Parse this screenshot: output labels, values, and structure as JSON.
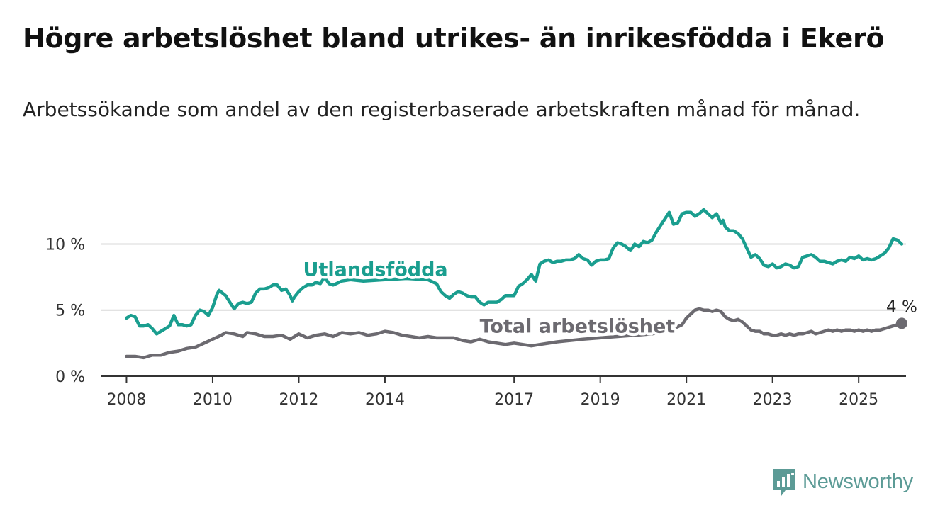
{
  "title": "Högre arbetslöshet bland utrikes- än inrikesfödda i Ekerö",
  "subtitle": "Arbetssökande som andel av den registerbaserade arbetskraften månad för månad.",
  "brand": {
    "name": "Newsworthy",
    "color": "#5c9b96"
  },
  "colors": {
    "foreign": "#1a9e8f",
    "total": "#6c6a70",
    "grid": "#d9d9d9",
    "axis": "#333333"
  },
  "chart_data": {
    "type": "line",
    "x_unit": "year",
    "xlim": [
      2007.4,
      2026.1
    ],
    "ylim": [
      0,
      12.6
    ],
    "yticks": [
      {
        "value": 0,
        "label": "0 %"
      },
      {
        "value": 5,
        "label": "5 %"
      },
      {
        "value": 10,
        "label": "10 %"
      }
    ],
    "xticks": [
      {
        "value": 2008,
        "label": "2008"
      },
      {
        "value": 2010,
        "label": "2010"
      },
      {
        "value": 2012,
        "label": "2012"
      },
      {
        "value": 2014,
        "label": "2014"
      },
      {
        "value": 2017,
        "label": "2017"
      },
      {
        "value": 2019,
        "label": "2019"
      },
      {
        "value": 2021,
        "label": "2021"
      },
      {
        "value": 2023,
        "label": "2023"
      },
      {
        "value": 2025,
        "label": "2025"
      }
    ],
    "series": [
      {
        "name": "Utlandsfödda",
        "color": "#1a9e8f",
        "label_at": [
          2012.1,
          7.6
        ],
        "points": [
          [
            2008.0,
            4.4
          ],
          [
            2008.1,
            4.6
          ],
          [
            2008.2,
            4.5
          ],
          [
            2008.3,
            3.8
          ],
          [
            2008.4,
            3.8
          ],
          [
            2008.5,
            3.9
          ],
          [
            2008.6,
            3.6
          ],
          [
            2008.7,
            3.2
          ],
          [
            2008.8,
            3.4
          ],
          [
            2008.9,
            3.6
          ],
          [
            2009.0,
            3.8
          ],
          [
            2009.1,
            4.6
          ],
          [
            2009.2,
            3.9
          ],
          [
            2009.3,
            3.9
          ],
          [
            2009.4,
            3.8
          ],
          [
            2009.5,
            3.9
          ],
          [
            2009.6,
            4.6
          ],
          [
            2009.7,
            5.0
          ],
          [
            2009.8,
            4.9
          ],
          [
            2009.9,
            4.6
          ],
          [
            2010.0,
            5.2
          ],
          [
            2010.1,
            6.2
          ],
          [
            2010.15,
            6.5
          ],
          [
            2010.3,
            6.1
          ],
          [
            2010.4,
            5.6
          ],
          [
            2010.5,
            5.1
          ],
          [
            2010.6,
            5.5
          ],
          [
            2010.7,
            5.6
          ],
          [
            2010.8,
            5.5
          ],
          [
            2010.9,
            5.6
          ],
          [
            2011.0,
            6.3
          ],
          [
            2011.1,
            6.6
          ],
          [
            2011.2,
            6.6
          ],
          [
            2011.3,
            6.7
          ],
          [
            2011.4,
            6.9
          ],
          [
            2011.5,
            6.9
          ],
          [
            2011.6,
            6.5
          ],
          [
            2011.7,
            6.6
          ],
          [
            2011.8,
            6.1
          ],
          [
            2011.85,
            5.7
          ],
          [
            2011.9,
            6.0
          ],
          [
            2012.0,
            6.4
          ],
          [
            2012.1,
            6.7
          ],
          [
            2012.2,
            6.9
          ],
          [
            2012.3,
            6.9
          ],
          [
            2012.4,
            7.1
          ],
          [
            2012.5,
            7.0
          ],
          [
            2012.6,
            7.5
          ],
          [
            2012.7,
            7.0
          ],
          [
            2012.8,
            6.9
          ],
          [
            2013.0,
            7.2
          ],
          [
            2013.2,
            7.3
          ],
          [
            2013.5,
            7.2
          ],
          [
            2014.0,
            7.3
          ],
          [
            2014.5,
            7.4
          ],
          [
            2015.0,
            7.3
          ],
          [
            2015.2,
            7.0
          ],
          [
            2015.3,
            6.4
          ],
          [
            2015.4,
            6.1
          ],
          [
            2015.5,
            5.9
          ],
          [
            2015.6,
            6.2
          ],
          [
            2015.7,
            6.4
          ],
          [
            2015.8,
            6.3
          ],
          [
            2015.9,
            6.1
          ],
          [
            2016.0,
            6.0
          ],
          [
            2016.1,
            6.0
          ],
          [
            2016.2,
            5.6
          ],
          [
            2016.3,
            5.4
          ],
          [
            2016.4,
            5.6
          ],
          [
            2016.5,
            5.6
          ],
          [
            2016.6,
            5.6
          ],
          [
            2016.7,
            5.8
          ],
          [
            2016.8,
            6.1
          ],
          [
            2016.9,
            6.1
          ],
          [
            2017.0,
            6.1
          ],
          [
            2017.1,
            6.8
          ],
          [
            2017.2,
            7.0
          ],
          [
            2017.3,
            7.3
          ],
          [
            2017.4,
            7.7
          ],
          [
            2017.5,
            7.2
          ],
          [
            2017.6,
            8.5
          ],
          [
            2017.7,
            8.7
          ],
          [
            2017.8,
            8.8
          ],
          [
            2017.9,
            8.6
          ],
          [
            2018.0,
            8.7
          ],
          [
            2018.1,
            8.7
          ],
          [
            2018.2,
            8.8
          ],
          [
            2018.3,
            8.8
          ],
          [
            2018.4,
            8.9
          ],
          [
            2018.5,
            9.2
          ],
          [
            2018.6,
            8.9
          ],
          [
            2018.7,
            8.8
          ],
          [
            2018.8,
            8.4
          ],
          [
            2018.9,
            8.7
          ],
          [
            2019.0,
            8.8
          ],
          [
            2019.1,
            8.8
          ],
          [
            2019.2,
            8.9
          ],
          [
            2019.3,
            9.7
          ],
          [
            2019.4,
            10.1
          ],
          [
            2019.5,
            10.0
          ],
          [
            2019.6,
            9.8
          ],
          [
            2019.7,
            9.5
          ],
          [
            2019.8,
            10.0
          ],
          [
            2019.9,
            9.8
          ],
          [
            2020.0,
            10.2
          ],
          [
            2020.1,
            10.1
          ],
          [
            2020.2,
            10.3
          ],
          [
            2020.3,
            10.9
          ],
          [
            2020.4,
            11.4
          ],
          [
            2020.5,
            11.9
          ],
          [
            2020.6,
            12.4
          ],
          [
            2020.7,
            11.5
          ],
          [
            2020.8,
            11.6
          ],
          [
            2020.9,
            12.3
          ],
          [
            2021.0,
            12.4
          ],
          [
            2021.1,
            12.4
          ],
          [
            2021.2,
            12.1
          ],
          [
            2021.3,
            12.3
          ],
          [
            2021.4,
            12.6
          ],
          [
            2021.5,
            12.3
          ],
          [
            2021.6,
            12.0
          ],
          [
            2021.7,
            12.3
          ],
          [
            2021.8,
            11.6
          ],
          [
            2021.85,
            11.8
          ],
          [
            2021.9,
            11.3
          ],
          [
            2022.0,
            11.0
          ],
          [
            2022.1,
            11.0
          ],
          [
            2022.2,
            10.8
          ],
          [
            2022.3,
            10.4
          ],
          [
            2022.4,
            9.7
          ],
          [
            2022.5,
            9.0
          ],
          [
            2022.6,
            9.2
          ],
          [
            2022.7,
            8.9
          ],
          [
            2022.8,
            8.4
          ],
          [
            2022.9,
            8.3
          ],
          [
            2023.0,
            8.5
          ],
          [
            2023.1,
            8.2
          ],
          [
            2023.2,
            8.3
          ],
          [
            2023.3,
            8.5
          ],
          [
            2023.4,
            8.4
          ],
          [
            2023.5,
            8.2
          ],
          [
            2023.6,
            8.3
          ],
          [
            2023.7,
            9.0
          ],
          [
            2023.8,
            9.1
          ],
          [
            2023.9,
            9.2
          ],
          [
            2024.0,
            9.0
          ],
          [
            2024.1,
            8.7
          ],
          [
            2024.2,
            8.7
          ],
          [
            2024.3,
            8.6
          ],
          [
            2024.4,
            8.5
          ],
          [
            2024.5,
            8.7
          ],
          [
            2024.6,
            8.8
          ],
          [
            2024.7,
            8.7
          ],
          [
            2024.8,
            9.0
          ],
          [
            2024.9,
            8.9
          ],
          [
            2025.0,
            9.1
          ],
          [
            2025.1,
            8.8
          ],
          [
            2025.2,
            8.9
          ],
          [
            2025.3,
            8.8
          ],
          [
            2025.4,
            8.9
          ],
          [
            2025.5,
            9.1
          ],
          [
            2025.6,
            9.3
          ],
          [
            2025.7,
            9.7
          ],
          [
            2025.8,
            10.4
          ],
          [
            2025.9,
            10.3
          ],
          [
            2026.0,
            10.0
          ]
        ]
      },
      {
        "name": "Total arbetslöshet",
        "color": "#6c6a70",
        "label_at": [
          2016.2,
          3.3
        ],
        "last_value_label": "4 %",
        "points": [
          [
            2008.0,
            1.5
          ],
          [
            2008.2,
            1.5
          ],
          [
            2008.4,
            1.4
          ],
          [
            2008.6,
            1.6
          ],
          [
            2008.8,
            1.6
          ],
          [
            2009.0,
            1.8
          ],
          [
            2009.2,
            1.9
          ],
          [
            2009.4,
            2.1
          ],
          [
            2009.6,
            2.2
          ],
          [
            2009.8,
            2.5
          ],
          [
            2010.0,
            2.8
          ],
          [
            2010.2,
            3.1
          ],
          [
            2010.3,
            3.3
          ],
          [
            2010.5,
            3.2
          ],
          [
            2010.7,
            3.0
          ],
          [
            2010.8,
            3.3
          ],
          [
            2011.0,
            3.2
          ],
          [
            2011.2,
            3.0
          ],
          [
            2011.4,
            3.0
          ],
          [
            2011.6,
            3.1
          ],
          [
            2011.8,
            2.8
          ],
          [
            2012.0,
            3.2
          ],
          [
            2012.2,
            2.9
          ],
          [
            2012.4,
            3.1
          ],
          [
            2012.6,
            3.2
          ],
          [
            2012.8,
            3.0
          ],
          [
            2013.0,
            3.3
          ],
          [
            2013.2,
            3.2
          ],
          [
            2013.4,
            3.3
          ],
          [
            2013.6,
            3.1
          ],
          [
            2013.8,
            3.2
          ],
          [
            2014.0,
            3.4
          ],
          [
            2014.2,
            3.3
          ],
          [
            2014.4,
            3.1
          ],
          [
            2014.6,
            3.0
          ],
          [
            2014.8,
            2.9
          ],
          [
            2015.0,
            3.0
          ],
          [
            2015.2,
            2.9
          ],
          [
            2015.4,
            2.9
          ],
          [
            2015.6,
            2.9
          ],
          [
            2015.8,
            2.7
          ],
          [
            2016.0,
            2.6
          ],
          [
            2016.2,
            2.8
          ],
          [
            2016.4,
            2.6
          ],
          [
            2016.6,
            2.5
          ],
          [
            2016.8,
            2.4
          ],
          [
            2017.0,
            2.5
          ],
          [
            2017.2,
            2.4
          ],
          [
            2017.4,
            2.3
          ],
          [
            2017.6,
            2.4
          ],
          [
            2017.8,
            2.5
          ],
          [
            2018.0,
            2.6
          ],
          [
            2018.3,
            2.7
          ],
          [
            2018.6,
            2.8
          ],
          [
            2019.0,
            2.9
          ],
          [
            2019.4,
            3.0
          ],
          [
            2019.8,
            3.1
          ],
          [
            2020.2,
            3.2
          ],
          [
            2020.5,
            3.4
          ],
          [
            2020.7,
            3.6
          ],
          [
            2020.9,
            3.9
          ],
          [
            2021.0,
            4.4
          ],
          [
            2021.1,
            4.7
          ],
          [
            2021.2,
            5.0
          ],
          [
            2021.3,
            5.1
          ],
          [
            2021.4,
            5.0
          ],
          [
            2021.5,
            5.0
          ],
          [
            2021.6,
            4.9
          ],
          [
            2021.7,
            5.0
          ],
          [
            2021.8,
            4.9
          ],
          [
            2021.9,
            4.5
          ],
          [
            2022.0,
            4.3
          ],
          [
            2022.1,
            4.2
          ],
          [
            2022.2,
            4.3
          ],
          [
            2022.3,
            4.1
          ],
          [
            2022.4,
            3.8
          ],
          [
            2022.5,
            3.5
          ],
          [
            2022.6,
            3.4
          ],
          [
            2022.7,
            3.4
          ],
          [
            2022.8,
            3.2
          ],
          [
            2022.9,
            3.2
          ],
          [
            2023.0,
            3.1
          ],
          [
            2023.1,
            3.1
          ],
          [
            2023.2,
            3.2
          ],
          [
            2023.3,
            3.1
          ],
          [
            2023.4,
            3.2
          ],
          [
            2023.5,
            3.1
          ],
          [
            2023.6,
            3.2
          ],
          [
            2023.7,
            3.2
          ],
          [
            2023.8,
            3.3
          ],
          [
            2023.9,
            3.4
          ],
          [
            2024.0,
            3.2
          ],
          [
            2024.1,
            3.3
          ],
          [
            2024.2,
            3.4
          ],
          [
            2024.3,
            3.5
          ],
          [
            2024.4,
            3.4
          ],
          [
            2024.5,
            3.5
          ],
          [
            2024.6,
            3.4
          ],
          [
            2024.7,
            3.5
          ],
          [
            2024.8,
            3.5
          ],
          [
            2024.9,
            3.4
          ],
          [
            2025.0,
            3.5
          ],
          [
            2025.1,
            3.4
          ],
          [
            2025.2,
            3.5
          ],
          [
            2025.3,
            3.4
          ],
          [
            2025.4,
            3.5
          ],
          [
            2025.5,
            3.5
          ],
          [
            2025.6,
            3.6
          ],
          [
            2025.7,
            3.7
          ],
          [
            2025.8,
            3.8
          ],
          [
            2025.9,
            3.9
          ],
          [
            2026.0,
            4.0
          ]
        ]
      }
    ]
  }
}
